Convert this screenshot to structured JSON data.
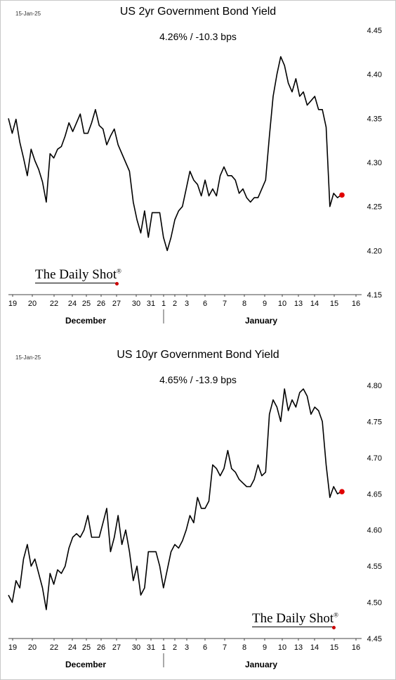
{
  "chart_data": [
    {
      "type": "line",
      "date_stamp": "15-Jan-25",
      "title": "US 2yr Government Bond Yield",
      "subtitle": "4.26%  /  -10.3 bps",
      "brand": "The Daily Shot",
      "brand_mark": "®",
      "ylim": [
        4.15,
        4.45
      ],
      "yticks": [
        "4.45",
        "4.40",
        "4.35",
        "4.30",
        "4.25",
        "4.20",
        "4.15"
      ],
      "ytick_values": [
        4.45,
        4.4,
        4.35,
        4.3,
        4.25,
        4.2,
        4.15
      ],
      "xticks": [
        "19",
        "20",
        "22",
        "24",
        "25",
        "26",
        "27",
        "30",
        "31",
        "1",
        "2",
        "3",
        "6",
        "7",
        "8",
        "9",
        "10",
        "13",
        "14",
        "15",
        "16"
      ],
      "months": [
        "December",
        "January"
      ],
      "grid": false,
      "line_color": "#000000",
      "marker_color": "#e00000",
      "series": [
        {
          "values": [
            4.35,
            4.333,
            4.349,
            4.323,
            4.305,
            4.285,
            4.315,
            4.302,
            4.292,
            4.278,
            4.255,
            4.31,
            4.305,
            4.315,
            4.318,
            4.33,
            4.345,
            4.335,
            4.345,
            4.355,
            4.333,
            4.333,
            4.345,
            4.36,
            4.342,
            4.338,
            4.32,
            4.33,
            4.338,
            4.32,
            4.31,
            4.3,
            4.29,
            4.255,
            4.235,
            4.22,
            4.245,
            4.215,
            4.243,
            4.243,
            4.243,
            4.215,
            4.2,
            4.215,
            4.235,
            4.245,
            4.25,
            4.27,
            4.29,
            4.28,
            4.275,
            4.262,
            4.28,
            4.262,
            4.27,
            4.262,
            4.285,
            4.295,
            4.285,
            4.285,
            4.28,
            4.265,
            4.27,
            4.26,
            4.255,
            4.26,
            4.26,
            4.27,
            4.28,
            4.33,
            4.375,
            4.4,
            4.42,
            4.41,
            4.39,
            4.38,
            4.395,
            4.375,
            4.38,
            4.365,
            4.37,
            4.375,
            4.36,
            4.36,
            4.34,
            4.25,
            4.265,
            4.26,
            4.263
          ]
        }
      ]
    },
    {
      "type": "line",
      "date_stamp": "15-Jan-25",
      "title": "US 10yr Government Bond Yield",
      "subtitle": "4.65%  /  -13.9 bps",
      "brand": "The Daily Shot",
      "brand_mark": "®",
      "ylim": [
        4.45,
        4.8
      ],
      "yticks": [
        "4.80",
        "4.75",
        "4.70",
        "4.65",
        "4.60",
        "4.55",
        "4.50",
        "4.45"
      ],
      "ytick_values": [
        4.8,
        4.75,
        4.7,
        4.65,
        4.6,
        4.55,
        4.5,
        4.45
      ],
      "xticks": [
        "19",
        "20",
        "22",
        "24",
        "25",
        "26",
        "27",
        "30",
        "31",
        "1",
        "2",
        "3",
        "6",
        "7",
        "8",
        "9",
        "10",
        "13",
        "14",
        "15",
        "16"
      ],
      "months": [
        "December",
        "January"
      ],
      "grid": false,
      "line_color": "#000000",
      "marker_color": "#e00000",
      "series": [
        {
          "values": [
            4.51,
            4.5,
            4.53,
            4.52,
            4.56,
            4.58,
            4.55,
            4.56,
            4.54,
            4.52,
            4.49,
            4.54,
            4.525,
            4.545,
            4.54,
            4.55,
            4.575,
            4.59,
            4.595,
            4.59,
            4.6,
            4.62,
            4.59,
            4.59,
            4.59,
            4.61,
            4.63,
            4.57,
            4.59,
            4.62,
            4.58,
            4.6,
            4.57,
            4.53,
            4.55,
            4.51,
            4.52,
            4.57,
            4.57,
            4.57,
            4.55,
            4.52,
            4.545,
            4.57,
            4.58,
            4.575,
            4.585,
            4.6,
            4.62,
            4.61,
            4.645,
            4.63,
            4.63,
            4.64,
            4.69,
            4.685,
            4.675,
            4.685,
            4.71,
            4.685,
            4.68,
            4.67,
            4.665,
            4.66,
            4.66,
            4.67,
            4.69,
            4.675,
            4.68,
            4.76,
            4.78,
            4.77,
            4.75,
            4.795,
            4.765,
            4.78,
            4.77,
            4.79,
            4.795,
            4.785,
            4.76,
            4.77,
            4.765,
            4.75,
            4.69,
            4.645,
            4.66,
            4.65,
            4.653
          ]
        }
      ]
    }
  ]
}
